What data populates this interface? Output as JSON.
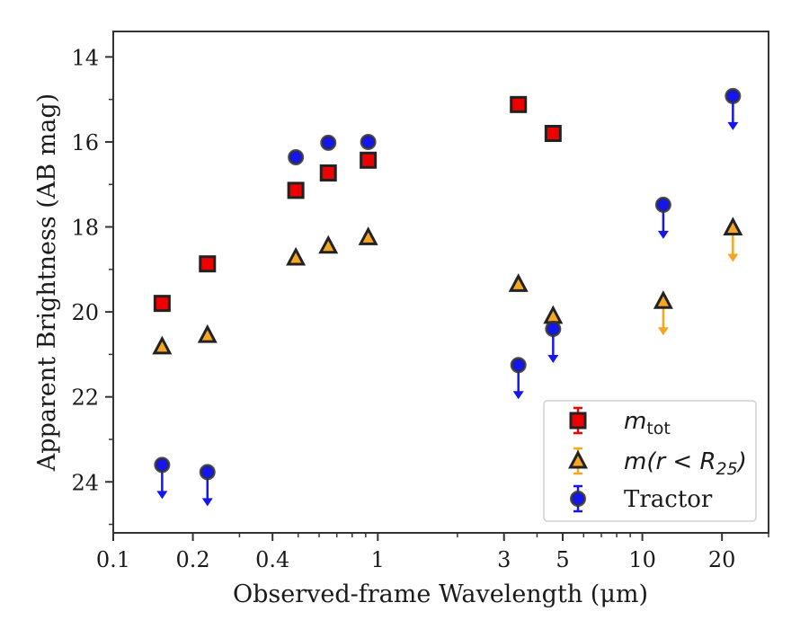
{
  "chart_data": {
    "type": "scatter",
    "title": "",
    "xlabel": "Observed-frame Wavelength (μm)",
    "ylabel": "Apparent Brightness (AB mag)",
    "xscale": "log",
    "xlim": [
      0.1,
      30
    ],
    "ylim": [
      25.2,
      13.4
    ],
    "y_inverted": true,
    "x_ticks": [
      {
        "value": 0.1,
        "label": "0.1"
      },
      {
        "value": 0.2,
        "label": "0.2"
      },
      {
        "value": 0.4,
        "label": "0.4"
      },
      {
        "value": 1,
        "label": "1"
      },
      {
        "value": 3,
        "label": "3"
      },
      {
        "value": 5,
        "label": "5"
      },
      {
        "value": 10,
        "label": "10"
      },
      {
        "value": 20,
        "label": "20"
      }
    ],
    "y_ticks": [
      {
        "value": 14,
        "label": "14"
      },
      {
        "value": 16,
        "label": "16"
      },
      {
        "value": 18,
        "label": "18"
      },
      {
        "value": 20,
        "label": "20"
      },
      {
        "value": 22,
        "label": "22"
      },
      {
        "value": 24,
        "label": "24"
      }
    ],
    "grid": false,
    "legend_position": "bottom-right",
    "series": [
      {
        "key": "mtot",
        "marker": "square",
        "color": "#ee0000",
        "edge_color": "#222222",
        "points": [
          {
            "x": 0.153,
            "y": 19.8
          },
          {
            "x": 0.227,
            "y": 18.87
          },
          {
            "x": 0.49,
            "y": 17.14
          },
          {
            "x": 0.65,
            "y": 16.73
          },
          {
            "x": 0.92,
            "y": 16.43
          },
          {
            "x": 3.4,
            "y": 15.12
          },
          {
            "x": 4.6,
            "y": 15.8
          }
        ]
      },
      {
        "key": "r25",
        "marker": "triangle",
        "color": "#f5a623",
        "edge_color": "#222222",
        "points": [
          {
            "x": 0.153,
            "y": 20.82
          },
          {
            "x": 0.227,
            "y": 20.55
          },
          {
            "x": 0.49,
            "y": 18.73
          },
          {
            "x": 0.65,
            "y": 18.45
          },
          {
            "x": 0.92,
            "y": 18.25
          },
          {
            "x": 3.4,
            "y": 19.35
          },
          {
            "x": 4.6,
            "y": 20.1
          },
          {
            "x": 12,
            "y": 19.75,
            "upper_limit": true
          },
          {
            "x": 22,
            "y": 18.02,
            "upper_limit": true
          }
        ]
      },
      {
        "key": "tractor",
        "marker": "circle",
        "color": "#1515ee",
        "edge_color": "#333333",
        "points": [
          {
            "x": 0.153,
            "y": 23.6,
            "upper_limit": true
          },
          {
            "x": 0.227,
            "y": 23.77,
            "upper_limit": true
          },
          {
            "x": 0.49,
            "y": 16.36
          },
          {
            "x": 0.65,
            "y": 16.02
          },
          {
            "x": 0.92,
            "y": 16.0
          },
          {
            "x": 3.4,
            "y": 21.25,
            "upper_limit": true
          },
          {
            "x": 4.6,
            "y": 20.4,
            "upper_limit": true
          },
          {
            "x": 12,
            "y": 17.48,
            "upper_limit": true
          },
          {
            "x": 22,
            "y": 14.92,
            "upper_limit": true
          }
        ]
      }
    ],
    "legend": [
      {
        "series": "mtot",
        "math_main": "m",
        "math_sub": "tot"
      },
      {
        "series": "r25",
        "math_main": "m(r < R",
        "math_sub": "25",
        "math_close": ")"
      },
      {
        "series": "tractor",
        "text": "Tractor"
      }
    ]
  }
}
